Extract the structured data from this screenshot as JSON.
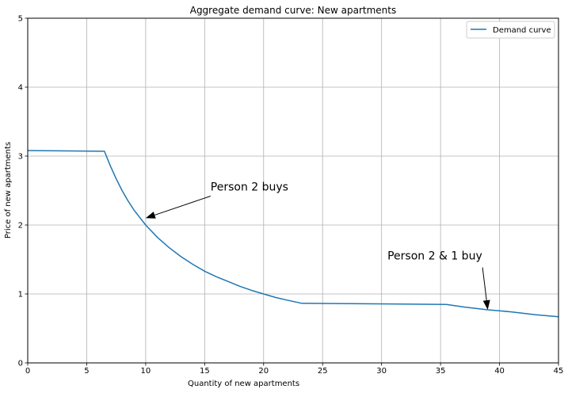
{
  "chart_data": {
    "type": "line",
    "title": "Aggregate demand curve: New apartments",
    "xlabel": "Quantity of new apartments",
    "ylabel": "Price of new apartments",
    "xlim": [
      0,
      45
    ],
    "ylim": [
      0,
      5
    ],
    "xticks": [
      0,
      5,
      10,
      15,
      20,
      25,
      30,
      35,
      40,
      45
    ],
    "yticks": [
      0,
      1,
      2,
      3,
      4,
      5
    ],
    "grid": true,
    "legend": {
      "position": "top-right",
      "entries": [
        "Demand curve"
      ]
    },
    "series": [
      {
        "name": "Demand curve",
        "color": "#1f77b4",
        "points": [
          [
            0,
            3.08
          ],
          [
            6.5,
            3.07
          ],
          [
            7,
            2.86
          ],
          [
            7.5,
            2.67
          ],
          [
            8,
            2.5
          ],
          [
            8.5,
            2.35
          ],
          [
            9,
            2.22
          ],
          [
            9.5,
            2.11
          ],
          [
            10,
            2.0
          ],
          [
            11,
            1.82
          ],
          [
            12,
            1.67
          ],
          [
            13,
            1.54
          ],
          [
            14,
            1.43
          ],
          [
            15,
            1.33
          ],
          [
            16,
            1.25
          ],
          [
            17,
            1.18
          ],
          [
            18,
            1.11
          ],
          [
            19,
            1.05
          ],
          [
            20,
            1.0
          ],
          [
            21,
            0.95
          ],
          [
            22,
            0.91
          ],
          [
            23.2,
            0.865
          ],
          [
            35.5,
            0.848
          ],
          [
            37,
            0.81
          ],
          [
            39,
            0.77
          ],
          [
            41,
            0.74
          ],
          [
            43,
            0.7
          ],
          [
            45,
            0.67
          ]
        ]
      }
    ],
    "annotations": [
      {
        "text": "Person 2 buys",
        "text_at": [
          15.5,
          2.5
        ],
        "arrow_to": [
          10,
          2.1
        ]
      },
      {
        "text": "Person 2 & 1 buy",
        "text_at": [
          30.5,
          1.5
        ],
        "arrow_to": [
          39,
          0.77
        ]
      }
    ]
  }
}
